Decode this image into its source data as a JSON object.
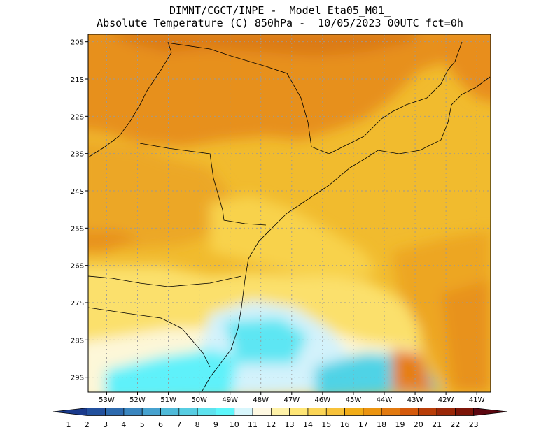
{
  "header": {
    "line1": "DIMNT/CGCT/INPE -  Model Eta05_M01_",
    "line2": "Absolute Temperature (C) 850hPa -  10/05/2023 00UTC fct=0h"
  },
  "map": {
    "lon_range": [
      -53.6,
      -40.55
    ],
    "lat_range": [
      -29.4,
      -19.8
    ],
    "lat_ticks": [
      {
        "value": -20,
        "label": "20S"
      },
      {
        "value": -21,
        "label": "21S"
      },
      {
        "value": -22,
        "label": "22S"
      },
      {
        "value": -23,
        "label": "23S"
      },
      {
        "value": -24,
        "label": "24S"
      },
      {
        "value": -25,
        "label": "25S"
      },
      {
        "value": -26,
        "label": "26S"
      },
      {
        "value": -27,
        "label": "27S"
      },
      {
        "value": -28,
        "label": "28S"
      },
      {
        "value": -29,
        "label": "29S"
      }
    ],
    "lon_ticks": [
      {
        "value": -53,
        "label": "53W"
      },
      {
        "value": -52,
        "label": "52W"
      },
      {
        "value": -51,
        "label": "51W"
      },
      {
        "value": -50,
        "label": "50W"
      },
      {
        "value": -49,
        "label": "49W"
      },
      {
        "value": -48,
        "label": "48W"
      },
      {
        "value": -47,
        "label": "47W"
      },
      {
        "value": -46,
        "label": "46W"
      },
      {
        "value": -45,
        "label": "45W"
      },
      {
        "value": -44,
        "label": "44W"
      },
      {
        "value": -43,
        "label": "43W"
      },
      {
        "value": -42,
        "label": "42W"
      },
      {
        "value": -41,
        "label": "41W"
      }
    ],
    "grid": true
  },
  "colorbar": {
    "labels": [
      "1",
      "2",
      "3",
      "4",
      "5",
      "6",
      "7",
      "8",
      "9",
      "10",
      "11",
      "12",
      "13",
      "14",
      "15",
      "16",
      "17",
      "18",
      "19",
      "20",
      "21",
      "22",
      "23"
    ],
    "colors": [
      "#1a3a8c",
      "#22509d",
      "#2d6aae",
      "#3a86bf",
      "#47a2cf",
      "#4fbad9",
      "#57cde2",
      "#5ee2ee",
      "#5df6fb",
      "#d8f6fc",
      "#fff9e2",
      "#fff2a8",
      "#ffe676",
      "#fbd556",
      "#f7c23a",
      "#f2ad18",
      "#eb9410",
      "#e27a10",
      "#d4590b",
      "#b83d08",
      "#9a2708",
      "#7d1508",
      "#5c0710"
    ]
  }
}
